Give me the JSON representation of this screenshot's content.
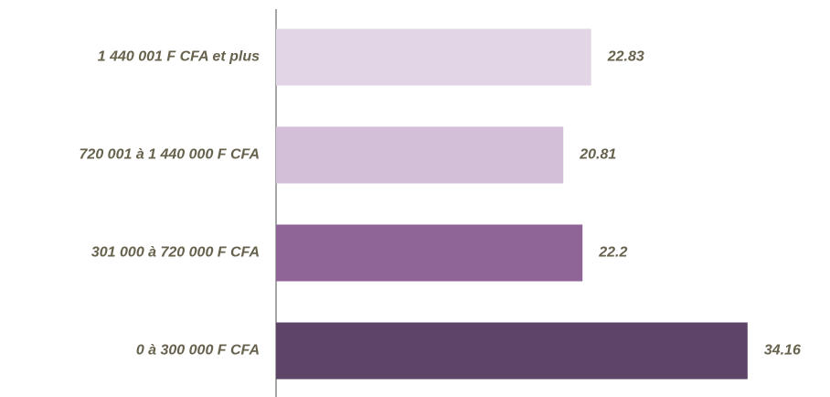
{
  "chart_data": {
    "type": "hbar",
    "categories": [
      "1 440 001 F CFA et plus",
      "720 001 à 1 440 000 F CFA",
      "301 000 à 720 000 F CFA",
      "0 à 300 000 F CFA"
    ],
    "values": [
      22.83,
      20.81,
      22.2,
      34.16
    ],
    "colors": [
      "#e2d6e6",
      "#d3bfd8",
      "#8e6596",
      "#5e4466"
    ],
    "xlim": [
      0,
      40
    ]
  }
}
